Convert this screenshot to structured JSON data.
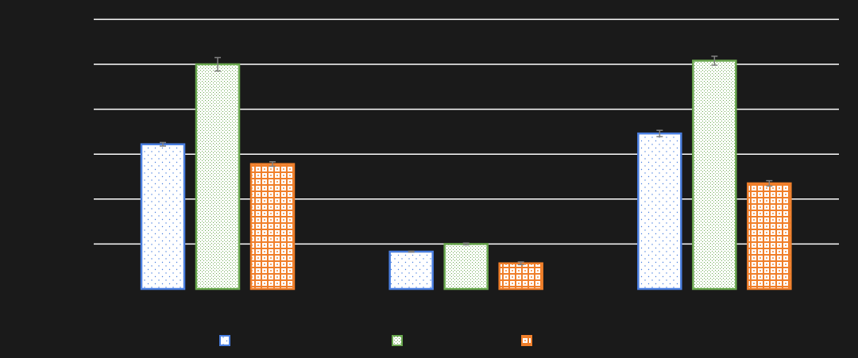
{
  "chart_data": {
    "type": "bar",
    "categories": [
      "",
      "",
      ""
    ],
    "series": [
      {
        "values": [
          3.22,
          0.83,
          3.46
        ],
        "errors": [
          0.04,
          0.01,
          0.07
        ],
        "color": "#4a7fe0",
        "pattern": "dots-blue"
      },
      {
        "values": [
          5.0,
          1.0,
          5.08
        ],
        "errors": [
          0.15,
          0.02,
          0.1
        ],
        "color": "#6aa84f",
        "pattern": "fine-green"
      },
      {
        "values": [
          2.78,
          0.57,
          2.35
        ],
        "errors": [
          0.05,
          0.03,
          0.06
        ],
        "color": "#f07f2a",
        "pattern": "grid-orange"
      }
    ],
    "ylim": [
      0,
      6
    ],
    "gridlines": [
      1,
      2,
      3,
      4,
      5,
      6
    ],
    "grid": true,
    "legend": "bottom",
    "background": "#1a1a1a",
    "gridline_color": "#ffffff",
    "error_bar_color": "#808080"
  }
}
